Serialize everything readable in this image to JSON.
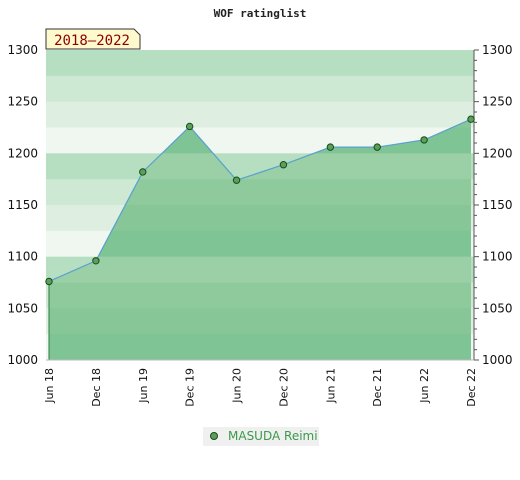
{
  "chart_data": {
    "type": "area",
    "title": "WOF ratinglist",
    "period_badge": "2018–2022",
    "x": [
      "Jun 18",
      "Dec 18",
      "Jun 19",
      "Dec 19",
      "Jun 20",
      "Dec 20",
      "Jun 21",
      "Dec 21",
      "Jun 22",
      "Dec 22"
    ],
    "series": [
      {
        "name": "MASUDA Reimi",
        "values": [
          1076,
          1096,
          1182,
          1226,
          1174,
          1189,
          1206,
          1206,
          1213,
          1233
        ]
      }
    ],
    "ylim": [
      1000,
      1300
    ],
    "yticks": [
      1000,
      1050,
      1100,
      1150,
      1200,
      1250,
      1300
    ],
    "grid": false,
    "legend_position": "bottom-center",
    "colors": {
      "line": "#5aa0d0",
      "marker_fill": "#5aa05a",
      "marker_stroke": "#1a4a1a",
      "fill_top": "#9bcfa6",
      "fill_bottom": "#7ec495",
      "bands_light": [
        "#b5dfc0",
        "#cde8d3",
        "#deefe1",
        "#eff7f0"
      ],
      "badge_fill": "#fffacd",
      "legend_text": "#3a9a4a"
    }
  }
}
